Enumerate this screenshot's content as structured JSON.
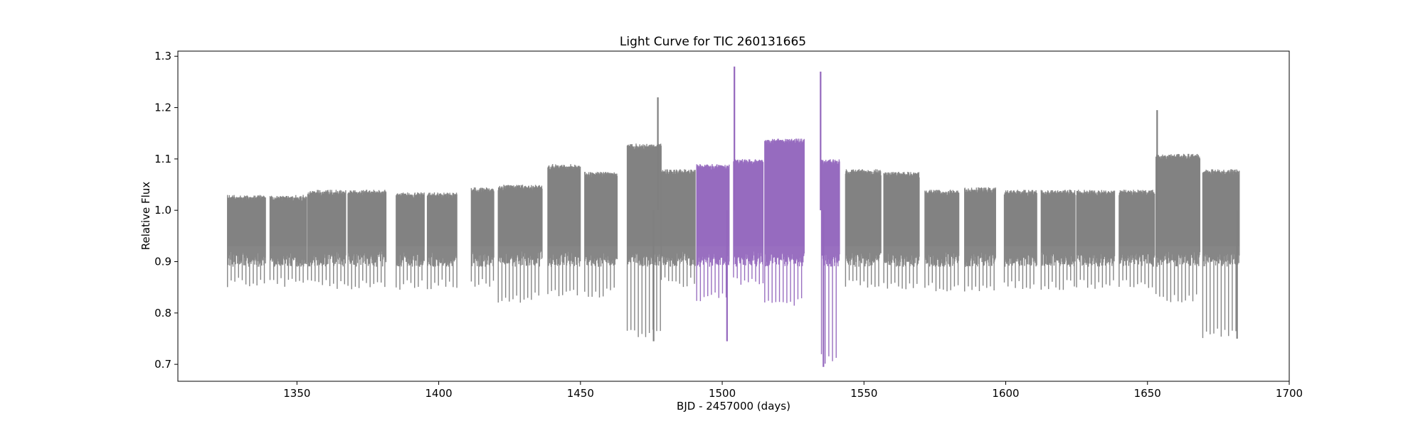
{
  "chart_data": {
    "type": "scatter",
    "title": "Light Curve for TIC 260131665",
    "xlabel": "BJD - 2457000 (days)",
    "ylabel": "Relative Flux",
    "xlim": [
      1308,
      1700
    ],
    "ylim": [
      0.667,
      1.31
    ],
    "xticks": [
      1350,
      1400,
      1450,
      1500,
      1550,
      1600,
      1650,
      1700
    ],
    "yticks": [
      0.7,
      0.8,
      0.9,
      1.0,
      1.1,
      1.2,
      1.3
    ],
    "xtick_labels": [
      "1350",
      "1400",
      "1450",
      "1500",
      "1550",
      "1600",
      "1650",
      "1700"
    ],
    "ytick_labels": [
      "0.7",
      "0.8",
      "0.9",
      "1.0",
      "1.1",
      "1.2",
      "1.3"
    ],
    "grid": false,
    "series_colors": [
      "#808080",
      "#9467bd"
    ],
    "series": [
      {
        "segments": [
          {
            "x": [
              1325.5,
              1339.0
            ],
            "baseline": 1.03,
            "dip": 0.85
          },
          {
            "x": [
              1340.5,
              1353.5
            ],
            "baseline": 1.03,
            "dip": 0.85
          },
          {
            "x": [
              1353.8,
              1367.2
            ],
            "baseline": 1.04,
            "dip": 0.845
          },
          {
            "x": [
              1368.0,
              1381.5
            ],
            "baseline": 1.04,
            "dip": 0.845
          },
          {
            "x": [
              1385.0,
              1395.0
            ],
            "baseline": 1.035,
            "dip": 0.845
          },
          {
            "x": [
              1396.0,
              1406.5
            ],
            "baseline": 1.035,
            "dip": 0.845
          },
          {
            "x": [
              1411.5,
              1419.5
            ],
            "baseline": 1.045,
            "dip": 0.85
          },
          {
            "x": [
              1421.0,
              1436.5
            ],
            "baseline": 1.05,
            "dip": 0.82
          },
          {
            "x": [
              1438.5,
              1450.0
            ],
            "baseline": 1.09,
            "dip": 0.83
          },
          {
            "x": [
              1451.5,
              1463.0
            ],
            "baseline": 1.075,
            "dip": 0.83
          },
          {
            "x": [
              1466.5,
              1478.5
            ],
            "baseline": 1.13,
            "dip": 0.75
          },
          {
            "x": [
              1478.5,
              1490.5
            ],
            "baseline": 1.08,
            "dip": 0.85
          },
          {
            "x": [
              1543.5,
              1556.0
            ],
            "baseline": 1.08,
            "dip": 0.845
          },
          {
            "x": [
              1557.0,
              1569.5
            ],
            "baseline": 1.075,
            "dip": 0.84
          },
          {
            "x": [
              1571.5,
              1583.5
            ],
            "baseline": 1.04,
            "dip": 0.84
          },
          {
            "x": [
              1585.5,
              1596.5
            ],
            "baseline": 1.045,
            "dip": 0.84
          },
          {
            "x": [
              1599.5,
              1611.0
            ],
            "baseline": 1.04,
            "dip": 0.845
          },
          {
            "x": [
              1612.5,
              1624.5
            ],
            "baseline": 1.04,
            "dip": 0.845
          },
          {
            "x": [
              1625.0,
              1638.5
            ],
            "baseline": 1.04,
            "dip": 0.845
          },
          {
            "x": [
              1640.0,
              1652.5
            ],
            "baseline": 1.04,
            "dip": 0.845
          },
          {
            "x": [
              1653.0,
              1668.5
            ],
            "baseline": 1.11,
            "dip": 0.82
          },
          {
            "x": [
              1669.5,
              1682.5
            ],
            "baseline": 1.08,
            "dip": 0.75
          }
        ]
      },
      {
        "segments": [
          {
            "x": [
              1491.0,
              1502.5
            ],
            "baseline": 1.09,
            "dip": 0.82
          },
          {
            "x": [
              1504.0,
              1514.5
            ],
            "baseline": 1.1,
            "dip": 0.85
          },
          {
            "x": [
              1515.0,
              1529.0
            ],
            "baseline": 1.14,
            "dip": 0.81
          },
          {
            "x": [
              1535.0,
              1541.5
            ],
            "baseline": 1.1,
            "dip": 0.7
          }
        ]
      }
    ],
    "spikes": [
      {
        "x": 1477.3,
        "y": 1.22,
        "series": 0
      },
      {
        "x": 1504.3,
        "y": 1.28,
        "series": 1
      },
      {
        "x": 1534.7,
        "y": 1.27,
        "series": 1
      },
      {
        "x": 1535.7,
        "y": 0.695,
        "series": 1
      },
      {
        "x": 1501.7,
        "y": 0.745,
        "series": 1
      },
      {
        "x": 1475.8,
        "y": 0.745,
        "series": 0
      },
      {
        "x": 1653.4,
        "y": 1.195,
        "series": 0
      },
      {
        "x": 1681.6,
        "y": 0.75,
        "series": 0
      }
    ]
  }
}
